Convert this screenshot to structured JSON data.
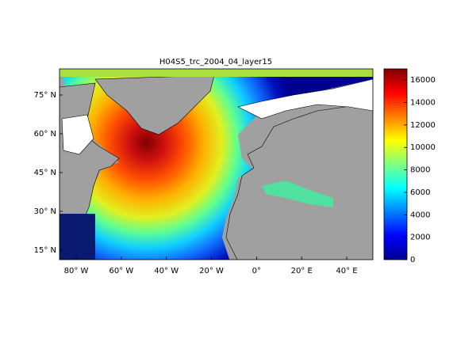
{
  "title": "H04S5_trc_2004_04_layer15",
  "map": {
    "xlim": [
      -87.4,
      51.6
    ],
    "ylim": [
      11.3,
      85.1
    ],
    "xticks": [
      {
        "value": -80,
        "label": "80° W"
      },
      {
        "value": -60,
        "label": "60° W"
      },
      {
        "value": -40,
        "label": "40° W"
      },
      {
        "value": -20,
        "label": "20° W"
      },
      {
        "value": 0,
        "label": "0°"
      },
      {
        "value": 20,
        "label": "20° E"
      },
      {
        "value": 40,
        "label": "40° E"
      }
    ],
    "yticks": [
      {
        "value": 15,
        "label": "15° N"
      },
      {
        "value": 30,
        "label": "30° N"
      },
      {
        "value": 45,
        "label": "45° N"
      },
      {
        "value": 60,
        "label": "60° N"
      },
      {
        "value": 75,
        "label": "75° N"
      }
    ]
  },
  "colorbar": {
    "lim": [
      0,
      17000
    ],
    "ticks": [
      0,
      2000,
      4000,
      6000,
      8000,
      10000,
      12000,
      14000,
      16000
    ]
  }
}
